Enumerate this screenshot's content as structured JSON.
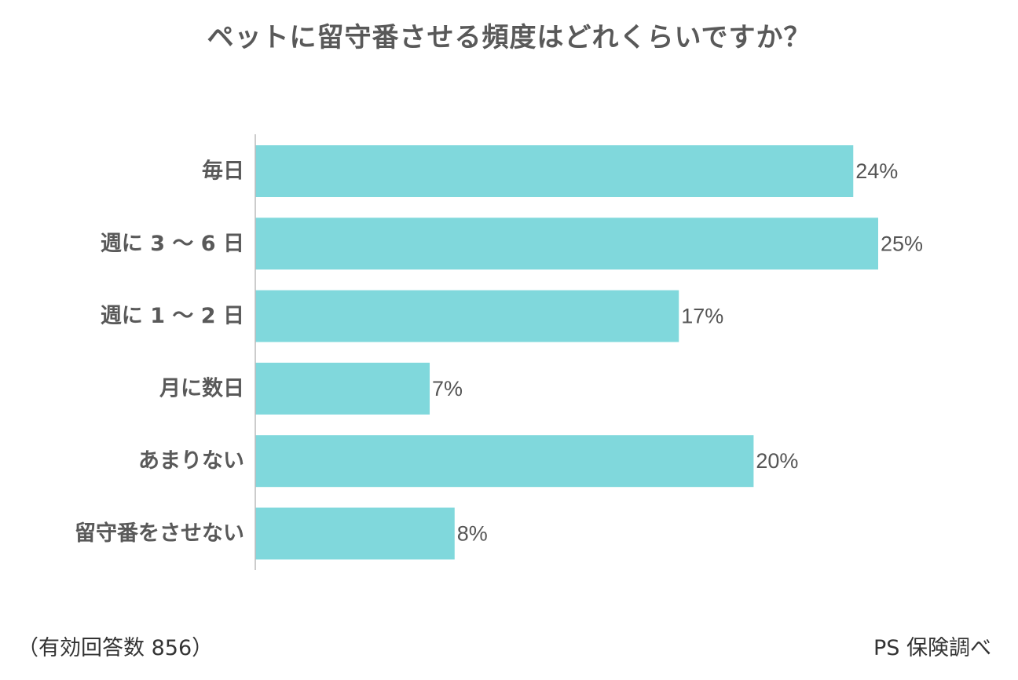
{
  "chart_data": {
    "type": "bar",
    "orientation": "horizontal",
    "title": "ペットに留守番させる頻度はどれくらいですか？",
    "categories": [
      "毎日",
      "週に 3 〜 6 日",
      "週に 1 〜 2 日",
      "月に数日",
      "あまりない",
      "留守番をさせない"
    ],
    "values": [
      24,
      25,
      17,
      7,
      20,
      8
    ],
    "value_labels": [
      "24%",
      "25%",
      "17%",
      "7%",
      "20%",
      "8%"
    ],
    "unit": "%",
    "xlim": [
      0,
      25
    ],
    "grid": false,
    "legend": "none",
    "bar_color": "#80D8DC",
    "axis_color": "#BBBBBB",
    "label_color": "#595959"
  },
  "footnote": {
    "sample": "（有効回答数 856）",
    "source": "PS 保険調べ"
  }
}
